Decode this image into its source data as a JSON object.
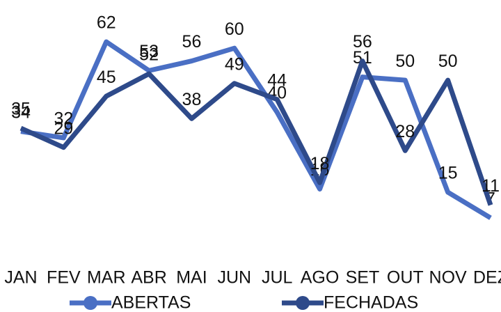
{
  "chart_data": {
    "type": "line",
    "categories": [
      "JAN",
      "FEV",
      "MAR",
      "ABR",
      "MAI",
      "JUN",
      "JUL",
      "AGO",
      "SET",
      "OUT",
      "NOV",
      "DEZ"
    ],
    "series": [
      {
        "name": "ABERTAS",
        "color": "#4a6fc4",
        "values": [
          34,
          32,
          62,
          53,
          56,
          60,
          40,
          16,
          51,
          50,
          15,
          7
        ]
      },
      {
        "name": "FECHADAS",
        "color": "#2e4a8a",
        "values": [
          35,
          29,
          45,
          52,
          38,
          49,
          44,
          18,
          56,
          28,
          50,
          11
        ]
      }
    ],
    "legend": "bottom"
  }
}
